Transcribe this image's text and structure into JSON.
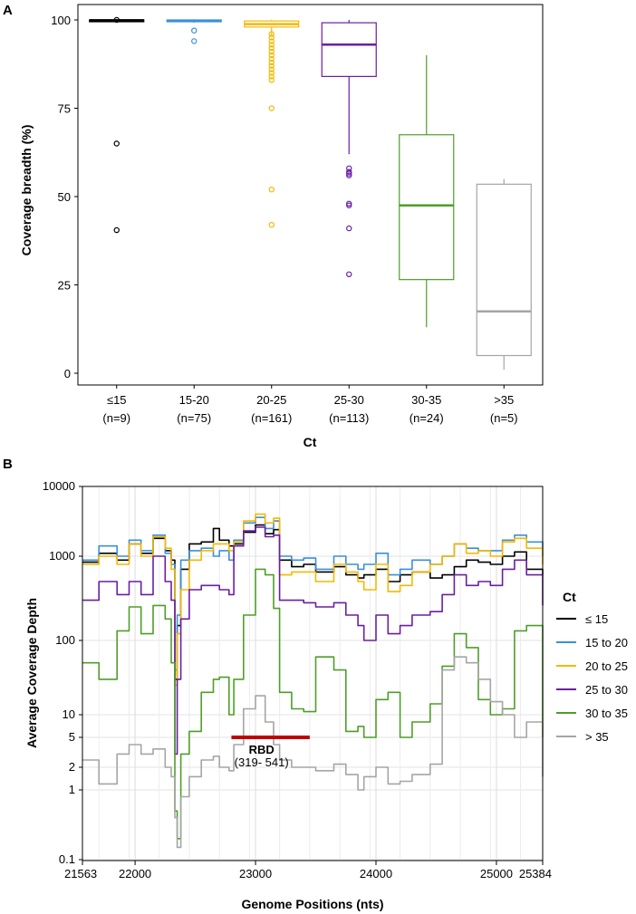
{
  "panel_a_label": "A",
  "panel_b_label": "B",
  "chart_data": [
    {
      "type": "box",
      "panel": "A",
      "ylabel": "Coverage breadth (%)",
      "xlabel": "Ct",
      "ylim": [
        -3,
        105
      ],
      "yticks": [
        0,
        25,
        50,
        75,
        100
      ],
      "grid": false,
      "groups": [
        {
          "label": "≤15",
          "n": "(n=9)",
          "color": "#000000",
          "q1": 99.8,
          "median": 99.9,
          "q3": 100,
          "whisker_low": 99.7,
          "whisker_high": 100,
          "outliers": [
            100,
            65,
            40.5
          ]
        },
        {
          "label": "15-20",
          "n": "(n=75)",
          "color": "#3a8fd9",
          "q1": 99.5,
          "median": 99.8,
          "q3": 100,
          "whisker_low": 99.2,
          "whisker_high": 100,
          "outliers": [
            97,
            94
          ]
        },
        {
          "label": "20-25",
          "n": "(n=161)",
          "color": "#f5b800",
          "q1": 98,
          "median": 98.8,
          "q3": 99.7,
          "whisker_low": 95.5,
          "whisker_high": 100,
          "outliers": [
            96,
            95,
            94,
            93,
            92,
            91,
            90,
            89,
            88,
            87,
            86,
            85,
            84,
            83,
            75,
            52,
            42
          ]
        },
        {
          "label": "25-30",
          "n": "(n=113)",
          "color": "#6a1fa2",
          "q1": 84,
          "median": 93,
          "q3": 99.2,
          "whisker_low": 62,
          "whisker_high": 100,
          "outliers": [
            58,
            57,
            56.5,
            56,
            48,
            47.5,
            41,
            28
          ]
        },
        {
          "label": "30-35",
          "n": "(n=24)",
          "color": "#4e9e28",
          "q1": 26.5,
          "median": 47.5,
          "q3": 67.5,
          "whisker_low": 13,
          "whisker_high": 90,
          "outliers": []
        },
        {
          "label": ">35",
          "n": "(n=5)",
          "color": "#a5a5a5",
          "q1": 5,
          "median": 17.5,
          "q3": 53.5,
          "whisker_low": 1,
          "whisker_high": 55,
          "outliers": []
        }
      ]
    },
    {
      "type": "line",
      "panel": "B",
      "ylabel": "Average Coverage Depth",
      "xlabel": "Genome Positions (nts)",
      "yscale": "log",
      "ylim": [
        0.1,
        10000
      ],
      "yticks": [
        0.1,
        1,
        2,
        5,
        10,
        100,
        1000,
        10000
      ],
      "ytick_labels": [
        "0.1",
        "1",
        "2",
        "5",
        "10",
        "100",
        "1000",
        "10000"
      ],
      "xlim": [
        21563,
        25384
      ],
      "xticks": [
        21563,
        22000,
        23000,
        24000,
        25000,
        25384
      ],
      "xtick_labels": [
        "21563",
        "22000",
        "23000",
        "24000",
        "25000",
        "25384"
      ],
      "grid": true,
      "legend_title": "Ct",
      "legend_position": "right",
      "annotation": {
        "label": "RBD",
        "sublabel": "(319- 541)",
        "x_start": 22800,
        "x_end": 23450,
        "y": 5,
        "color": "#c00000"
      },
      "series": [
        {
          "name": "≤ 15",
          "color": "#000000",
          "x": [
            21563,
            21700,
            21850,
            21950,
            22050,
            22150,
            22250,
            22300,
            22330,
            22350,
            22380,
            22450,
            22550,
            22650,
            22700,
            22780,
            22820,
            22900,
            23000,
            23080,
            23150,
            23200,
            23300,
            23400,
            23500,
            23650,
            23750,
            23850,
            23900,
            24000,
            24100,
            24200,
            24300,
            24450,
            24550,
            24650,
            24750,
            24850,
            24950,
            25050,
            25150,
            25250,
            25384
          ],
          "values": [
            850,
            1100,
            900,
            1500,
            1100,
            1800,
            1200,
            900,
            30,
            150,
            700,
            1500,
            1600,
            2500,
            1700,
            1400,
            1500,
            2200,
            2800,
            2100,
            2400,
            900,
            750,
            800,
            650,
            750,
            600,
            550,
            600,
            700,
            500,
            600,
            650,
            550,
            600,
            750,
            900,
            850,
            800,
            1000,
            1150,
            700,
            600
          ]
        },
        {
          "name": "15 to 20",
          "color": "#3a8fd9",
          "x": [
            21563,
            21700,
            21850,
            21950,
            22050,
            22150,
            22250,
            22300,
            22330,
            22350,
            22380,
            22450,
            22550,
            22650,
            22700,
            22780,
            22820,
            22900,
            23000,
            23080,
            23150,
            23200,
            23300,
            23400,
            23500,
            23650,
            23750,
            23850,
            23900,
            24000,
            24100,
            24200,
            24300,
            24450,
            24550,
            24650,
            24750,
            24850,
            24950,
            25050,
            25150,
            25250,
            25384
          ],
          "values": [
            900,
            1400,
            1000,
            1700,
            1200,
            2000,
            1100,
            800,
            40,
            200,
            900,
            1200,
            1300,
            1000,
            1200,
            900,
            1700,
            3000,
            3600,
            2500,
            3200,
            1000,
            900,
            950,
            700,
            1000,
            800,
            700,
            800,
            1100,
            600,
            700,
            900,
            800,
            1000,
            1500,
            1300,
            1200,
            1200,
            1700,
            2000,
            1600,
            1000
          ]
        },
        {
          "name": "20 to 25",
          "color": "#f5b800",
          "x": [
            21563,
            21700,
            21850,
            21950,
            22050,
            22150,
            22250,
            22300,
            22330,
            22350,
            22380,
            22450,
            22550,
            22650,
            22700,
            22780,
            22820,
            22900,
            23000,
            23080,
            23150,
            23200,
            23300,
            23400,
            23500,
            23650,
            23750,
            23850,
            23900,
            24000,
            24100,
            24200,
            24300,
            24450,
            24550,
            24650,
            24750,
            24850,
            24950,
            25050,
            25150,
            25250,
            25384
          ],
          "values": [
            800,
            1000,
            800,
            1500,
            1000,
            1900,
            1300,
            700,
            25,
            120,
            400,
            900,
            1200,
            1500,
            1500,
            1200,
            1600,
            3200,
            4000,
            3000,
            3500,
            600,
            650,
            650,
            500,
            800,
            650,
            500,
            400,
            800,
            380,
            450,
            650,
            800,
            1000,
            1500,
            1100,
            1200,
            1000,
            1600,
            1800,
            1300,
            800
          ]
        },
        {
          "name": "25 to 30",
          "color": "#6a1fa2",
          "x": [
            21563,
            21700,
            21850,
            21950,
            22050,
            22150,
            22250,
            22300,
            22330,
            22350,
            22380,
            22450,
            22550,
            22650,
            22700,
            22780,
            22820,
            22900,
            23000,
            23080,
            23150,
            23200,
            23300,
            23400,
            23500,
            23650,
            23750,
            23850,
            23900,
            24000,
            24100,
            24200,
            24300,
            24450,
            24550,
            24650,
            24750,
            24850,
            24950,
            25050,
            25150,
            25250,
            25384
          ],
          "values": [
            300,
            500,
            350,
            500,
            350,
            1000,
            500,
            300,
            3,
            30,
            180,
            400,
            450,
            450,
            400,
            350,
            1400,
            2300,
            2600,
            1900,
            2000,
            300,
            300,
            280,
            250,
            280,
            200,
            150,
            100,
            200,
            120,
            150,
            200,
            220,
            350,
            600,
            450,
            500,
            450,
            700,
            900,
            600,
            260
          ]
        },
        {
          "name": "30 to 35",
          "color": "#4e9e28",
          "x": [
            21563,
            21700,
            21850,
            21950,
            22050,
            22150,
            22250,
            22300,
            22330,
            22350,
            22380,
            22450,
            22550,
            22650,
            22700,
            22780,
            22820,
            22900,
            23000,
            23080,
            23150,
            23200,
            23300,
            23400,
            23500,
            23650,
            23750,
            23850,
            23900,
            24000,
            24100,
            24200,
            24300,
            24450,
            24550,
            24650,
            24750,
            24850,
            24950,
            25050,
            25150,
            25250,
            25384
          ],
          "values": [
            50,
            30,
            130,
            250,
            120,
            260,
            180,
            50,
            0.5,
            0.2,
            3,
            6,
            20,
            30,
            32,
            10,
            30,
            200,
            700,
            600,
            240,
            20,
            12,
            11,
            60,
            40,
            6,
            7,
            5,
            16,
            20,
            5,
            8,
            14,
            45,
            120,
            80,
            16,
            10,
            12,
            130,
            150,
            5
          ]
        },
        {
          "name": "> 35",
          "color": "#a5a5a5",
          "x": [
            21563,
            21700,
            21850,
            21950,
            22050,
            22150,
            22250,
            22300,
            22330,
            22350,
            22380,
            22450,
            22550,
            22650,
            22700,
            22780,
            22820,
            22900,
            23000,
            23080,
            23150,
            23200,
            23300,
            23400,
            23500,
            23650,
            23750,
            23850,
            23900,
            24000,
            24100,
            24200,
            24300,
            24450,
            24550,
            24650,
            24750,
            24850,
            24950,
            25050,
            25150,
            25250,
            25384
          ],
          "values": [
            2.5,
            1.2,
            3,
            4,
            3,
            3.5,
            2,
            1.5,
            0.4,
            0.15,
            0.8,
            1.5,
            2.5,
            2.8,
            2,
            1.8,
            4,
            12,
            18,
            8,
            4,
            2.5,
            2,
            2,
            1.8,
            2.2,
            1.6,
            1,
            1.5,
            2,
            1.2,
            1.3,
            1.6,
            2.2,
            40,
            60,
            50,
            30,
            15,
            10,
            5,
            8,
            1.5
          ]
        }
      ]
    }
  ]
}
